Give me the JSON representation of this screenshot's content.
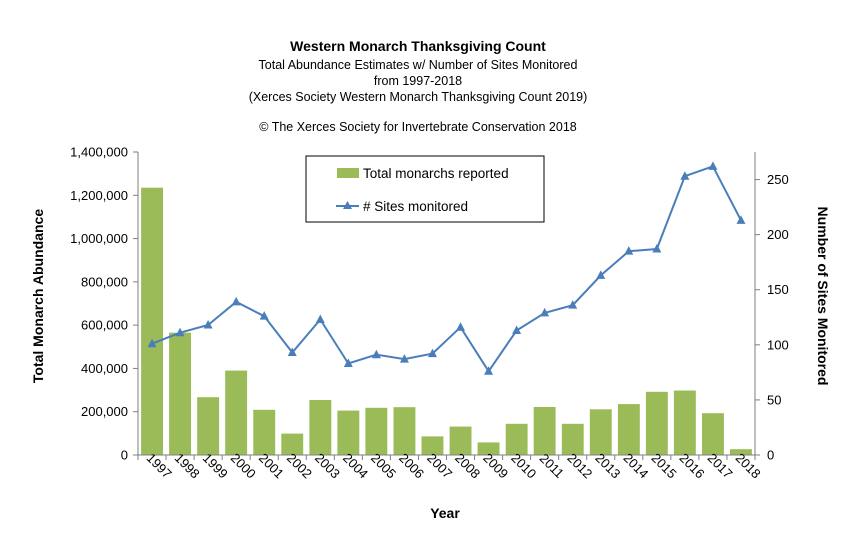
{
  "chart_data": {
    "type": "bar+line",
    "title": "Western Monarch Thanksgiving Count",
    "subtitle_lines": [
      "Total Abundance Estimates w/ Number of Sites Monitored",
      "from 1997-2018",
      "(Xerces Society Western Monarch Thanksgiving Count 2019)"
    ],
    "copyright": "© The Xerces Society for Invertebrate Conservation 2018",
    "xlabel": "Year",
    "ylabel_left": "Total Monarch Abundance",
    "ylabel_right": "Number of Sites Monitored",
    "categories": [
      "1997",
      "1998",
      "1999",
      "2000",
      "2001",
      "2002",
      "2003",
      "2004",
      "2005",
      "2006",
      "2007",
      "2008",
      "2009",
      "2010",
      "2011",
      "2012",
      "2013",
      "2014",
      "2015",
      "2016",
      "2017",
      "2018"
    ],
    "y_left": {
      "range": [
        0,
        1400000
      ],
      "ticks": [
        0,
        200000,
        400000,
        600000,
        800000,
        1000000,
        1200000,
        1400000
      ],
      "tick_labels": [
        "0",
        "200,000",
        "400,000",
        "600,000",
        "800,000",
        "1,000,000",
        "1,200,000",
        "1,400,000"
      ]
    },
    "y_right": {
      "range": [
        0,
        275
      ],
      "ticks": [
        0,
        50,
        100,
        150,
        200,
        250
      ],
      "tick_labels": [
        "0",
        "50",
        "100",
        "150",
        "200",
        "250"
      ]
    },
    "series": [
      {
        "name": "Total monarchs reported",
        "kind": "bar",
        "axis": "left",
        "color": "#9bbb59",
        "values": [
          1235000,
          565000,
          267000,
          390000,
          209000,
          99000,
          254000,
          205000,
          218000,
          221000,
          86000,
          131000,
          58000,
          144000,
          222000,
          144000,
          211000,
          235000,
          292000,
          298000,
          193000,
          27000
        ]
      },
      {
        "name": "# Sites monitored",
        "kind": "line",
        "axis": "right",
        "color": "#4a7ebb",
        "marker": "triangle",
        "values": [
          101,
          111,
          118,
          139,
          126,
          93,
          123,
          83,
          91,
          87,
          92,
          116,
          76,
          113,
          129,
          136,
          163,
          185,
          187,
          253,
          262,
          213
        ]
      }
    ],
    "legend": {
      "position": "top-center"
    },
    "grid": false
  }
}
